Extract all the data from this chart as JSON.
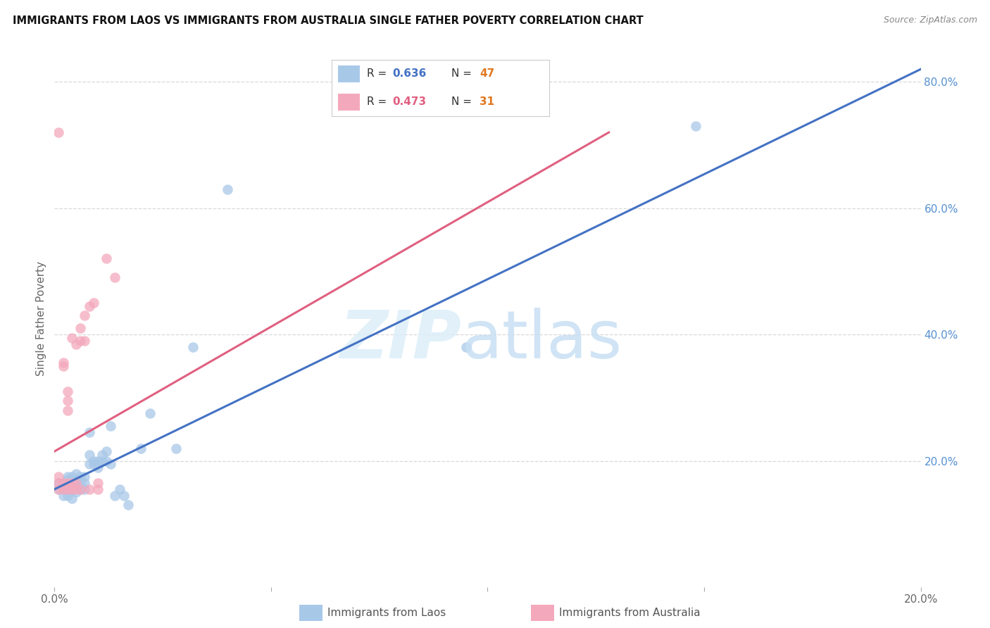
{
  "title": "IMMIGRANTS FROM LAOS VS IMMIGRANTS FROM AUSTRALIA SINGLE FATHER POVERTY CORRELATION CHART",
  "source": "Source: ZipAtlas.com",
  "ylabel": "Single Father Poverty",
  "xlim": [
    0.0,
    0.2
  ],
  "ylim": [
    0.0,
    0.85
  ],
  "background_color": "#ffffff",
  "blue_color": "#a8c8e8",
  "pink_color": "#f4a8bc",
  "blue_line_color": "#4472c4",
  "pink_line_color": "#e06080",
  "grid_color": "#d8d8d8",
  "blue_R": "0.636",
  "blue_N": "47",
  "pink_R": "0.473",
  "pink_N": "31",
  "blue_R_color": "#4472c4",
  "blue_N_color": "#e07820",
  "pink_R_color": "#e06080",
  "pink_N_color": "#e07820",
  "laos_x": [
    0.001,
    0.001,
    0.002,
    0.002,
    0.002,
    0.003,
    0.003,
    0.003,
    0.003,
    0.004,
    0.004,
    0.004,
    0.004,
    0.005,
    0.005,
    0.005,
    0.005,
    0.006,
    0.006,
    0.006,
    0.007,
    0.007,
    0.007,
    0.008,
    0.008,
    0.008,
    0.009,
    0.009,
    0.01,
    0.01,
    0.011,
    0.011,
    0.012,
    0.012,
    0.013,
    0.013,
    0.014,
    0.015,
    0.016,
    0.017,
    0.02,
    0.022,
    0.028,
    0.032,
    0.04,
    0.095,
    0.148
  ],
  "laos_y": [
    0.155,
    0.165,
    0.145,
    0.155,
    0.165,
    0.145,
    0.155,
    0.17,
    0.175,
    0.14,
    0.155,
    0.16,
    0.175,
    0.15,
    0.16,
    0.17,
    0.18,
    0.155,
    0.165,
    0.175,
    0.155,
    0.165,
    0.175,
    0.195,
    0.21,
    0.245,
    0.195,
    0.2,
    0.19,
    0.2,
    0.2,
    0.21,
    0.2,
    0.215,
    0.195,
    0.255,
    0.145,
    0.155,
    0.145,
    0.13,
    0.22,
    0.275,
    0.22,
    0.38,
    0.63,
    0.38,
    0.73
  ],
  "australia_x": [
    0.001,
    0.001,
    0.001,
    0.001,
    0.002,
    0.002,
    0.002,
    0.002,
    0.003,
    0.003,
    0.003,
    0.003,
    0.003,
    0.004,
    0.004,
    0.004,
    0.005,
    0.005,
    0.005,
    0.006,
    0.006,
    0.006,
    0.007,
    0.007,
    0.008,
    0.008,
    0.009,
    0.01,
    0.01,
    0.012,
    0.014
  ],
  "australia_y": [
    0.155,
    0.165,
    0.175,
    0.72,
    0.155,
    0.165,
    0.35,
    0.355,
    0.155,
    0.165,
    0.28,
    0.295,
    0.31,
    0.155,
    0.165,
    0.395,
    0.155,
    0.165,
    0.385,
    0.155,
    0.39,
    0.41,
    0.39,
    0.43,
    0.155,
    0.445,
    0.45,
    0.155,
    0.165,
    0.52,
    0.49
  ],
  "blue_line_x": [
    0.0,
    0.2
  ],
  "blue_line_y": [
    0.155,
    0.82
  ],
  "pink_line_x": [
    0.0,
    0.128
  ],
  "pink_line_y": [
    0.215,
    0.72
  ]
}
